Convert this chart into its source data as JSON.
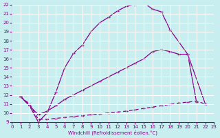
{
  "xlabel": "Windchill (Refroidissement éolien,°C)",
  "bg_color": "#c8eef0",
  "line_color": "#880088",
  "grid_color": "#ffffff",
  "xmin": 0,
  "xmax": 23,
  "ymin": 9,
  "ymax": 22,
  "yticks": [
    9,
    10,
    11,
    12,
    13,
    14,
    15,
    16,
    17,
    18,
    19,
    20,
    21,
    22
  ],
  "xticks": [
    0,
    1,
    2,
    3,
    4,
    5,
    6,
    7,
    8,
    9,
    10,
    11,
    12,
    13,
    14,
    15,
    16,
    17,
    18,
    19,
    20,
    21,
    22,
    23
  ],
  "line1_x": [
    1,
    2,
    3,
    4,
    5,
    6,
    7,
    8,
    9,
    10,
    11,
    12,
    13,
    14,
    15,
    16,
    17,
    18,
    20,
    21
  ],
  "line1_y": [
    11.8,
    10.8,
    9.0,
    10.0,
    12.3,
    15.0,
    16.6,
    17.5,
    19.0,
    20.0,
    20.6,
    21.3,
    21.8,
    22.0,
    22.2,
    21.5,
    21.2,
    19.2,
    16.5,
    11.2
  ],
  "line2_x": [
    1,
    3,
    4,
    5,
    6,
    7,
    8,
    9,
    10,
    11,
    12,
    13,
    14,
    15,
    16,
    17,
    18,
    19,
    20,
    22
  ],
  "line2_y": [
    11.8,
    9.8,
    10.2,
    10.8,
    11.5,
    12.0,
    12.5,
    13.0,
    13.5,
    14.0,
    14.5,
    15.0,
    15.5,
    16.0,
    16.8,
    17.0,
    16.8,
    16.5,
    16.5,
    11.0
  ],
  "line3_x": [
    1,
    2,
    3,
    4,
    5,
    6,
    7,
    8,
    9,
    10,
    11,
    12,
    13,
    14,
    15,
    16,
    17,
    18,
    19,
    20,
    21,
    22
  ],
  "line3_y": [
    11.8,
    11.0,
    9.3,
    9.3,
    9.4,
    9.5,
    9.6,
    9.7,
    9.8,
    9.9,
    10.0,
    10.1,
    10.2,
    10.35,
    10.5,
    10.65,
    10.8,
    10.95,
    11.1,
    11.2,
    11.3,
    11.0
  ]
}
